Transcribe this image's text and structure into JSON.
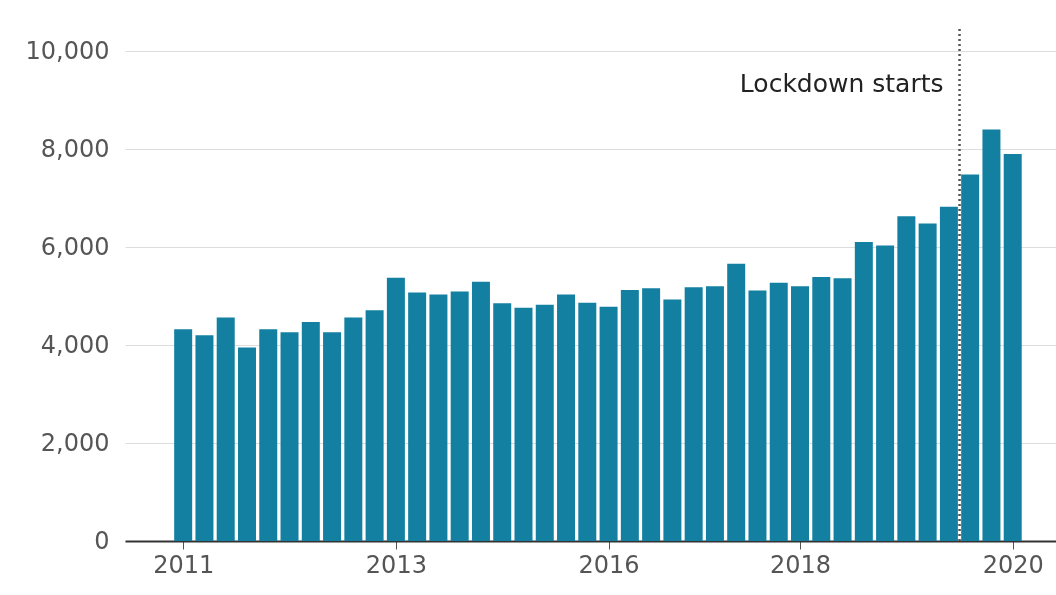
{
  "chart_data": {
    "type": "bar",
    "categories": [
      "2011",
      null,
      null,
      null,
      null,
      null,
      null,
      null,
      null,
      null,
      "2013",
      null,
      null,
      null,
      null,
      null,
      null,
      null,
      null,
      null,
      "2016",
      null,
      null,
      null,
      null,
      null,
      null,
      null,
      null,
      "2018",
      null,
      null,
      null,
      null,
      null,
      null,
      null,
      null,
      null,
      "2020"
    ],
    "values": [
      4320,
      4200,
      4560,
      3950,
      4320,
      4260,
      4470,
      4260,
      4560,
      4710,
      5370,
      5070,
      5030,
      5090,
      5290,
      4850,
      4760,
      4820,
      5030,
      4860,
      4780,
      5120,
      5160,
      4930,
      5180,
      5200,
      5660,
      5110,
      5270,
      5200,
      5390,
      5360,
      6100,
      6030,
      6630,
      6480,
      6820,
      7480,
      8400,
      7900
    ],
    "color": "#1380a1",
    "ylim": [
      0,
      10000
    ],
    "yticks": [
      0,
      {
        "value": 2000,
        "label": "2,000"
      },
      {
        "value": 4000,
        "label": "4,000"
      },
      {
        "value": 6000,
        "label": "6,000"
      },
      {
        "value": 8000,
        "label": "8,000"
      },
      {
        "value": 10000,
        "label": "10,000"
      }
    ],
    "grid": "y",
    "annotations": [
      "Lockdown starts"
    ]
  }
}
